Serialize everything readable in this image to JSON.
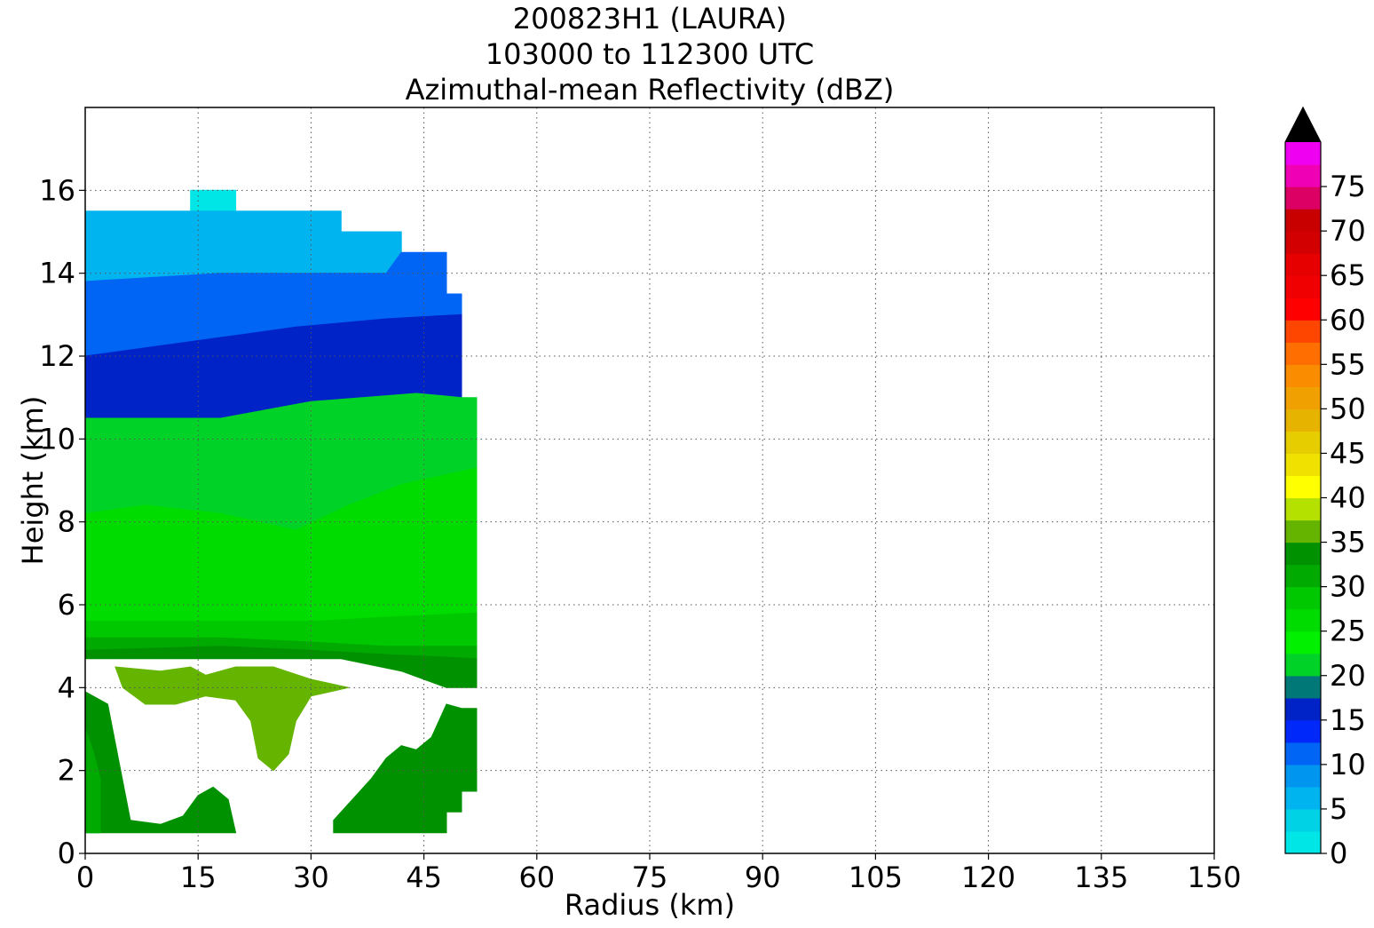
{
  "chart_data": {
    "type": "heatmap",
    "title_lines": [
      "200823H1 (LAURA)",
      "103000 to 112300 UTC",
      "Azimuthal-mean Reflectivity (dBZ)"
    ],
    "xlabel": "Radius (km)",
    "ylabel": "Height (km)",
    "xlim": [
      0,
      150
    ],
    "ylim": [
      0,
      18
    ],
    "x_ticks": [
      0,
      15,
      30,
      45,
      60,
      75,
      90,
      105,
      120,
      135,
      150
    ],
    "y_ticks": [
      0,
      2,
      4,
      6,
      8,
      10,
      12,
      14,
      16
    ],
    "grid": true,
    "colorbar": {
      "levels": [
        0,
        2.5,
        5,
        7.5,
        10,
        12.5,
        15,
        17.5,
        20,
        22.5,
        25,
        27.5,
        30,
        32.5,
        35,
        37.5,
        40,
        42.5,
        45,
        47.5,
        50,
        52.5,
        55,
        57.5,
        60,
        62.5,
        65,
        67.5,
        70,
        72.5,
        75,
        77.5,
        80
      ],
      "tick_labels": [
        "0",
        "5",
        "10",
        "15",
        "20",
        "25",
        "30",
        "35",
        "40",
        "45",
        "50",
        "55",
        "60",
        "65",
        "70",
        "75"
      ],
      "extend": "max",
      "extend_color": "#000000",
      "colors": [
        "#00e6e6",
        "#00d2e6",
        "#00b4ef",
        "#0096f0",
        "#0064f5",
        "#0028fa",
        "#0023c8",
        "#007878",
        "#00d228",
        "#00f000",
        "#00dc00",
        "#00c800",
        "#00aa00",
        "#009100",
        "#64b400",
        "#b4e100",
        "#ffff00",
        "#f0e100",
        "#e6cd00",
        "#e6b400",
        "#f0a000",
        "#fa8c00",
        "#ff6e00",
        "#ff4600",
        "#ff0000",
        "#f00000",
        "#e60000",
        "#d20000",
        "#c80000",
        "#dc0064",
        "#f000b4",
        "#f000f0",
        "#d732e6",
        "#a050d2",
        "#78419b",
        "#46285a",
        "#000000"
      ]
    },
    "fields": [
      {
        "dbz": 2,
        "polygon": [
          [
            14,
            15.5
          ],
          [
            14,
            16
          ],
          [
            20,
            16
          ],
          [
            20,
            15.5
          ]
        ]
      },
      {
        "dbz": 5,
        "polygon": [
          [
            0,
            15.5
          ],
          [
            20,
            15.5
          ],
          [
            20,
            15.5
          ],
          [
            34,
            15.5
          ],
          [
            34,
            15
          ],
          [
            36,
            15
          ],
          [
            36,
            14.5
          ],
          [
            28,
            14.5
          ],
          [
            18,
            14.7
          ],
          [
            10,
            14.6
          ],
          [
            0,
            14.8
          ]
        ]
      },
      {
        "dbz": 7,
        "polygon": [
          [
            0,
            14.8
          ],
          [
            10,
            14.6
          ],
          [
            18,
            14.7
          ],
          [
            28,
            14.5
          ],
          [
            36,
            14.5
          ],
          [
            36,
            15
          ],
          [
            42,
            15
          ],
          [
            42,
            14.5
          ],
          [
            40,
            14.0
          ],
          [
            28,
            14.0
          ],
          [
            18,
            14.0
          ],
          [
            0,
            13.8
          ]
        ]
      },
      {
        "dbz": 10,
        "polygon": [
          [
            0,
            13.8
          ],
          [
            18,
            14.0
          ],
          [
            28,
            14.0
          ],
          [
            40,
            14.0
          ],
          [
            42,
            14.5
          ],
          [
            48,
            14.5
          ],
          [
            48,
            13.9
          ],
          [
            40,
            13.6
          ],
          [
            28,
            13.5
          ],
          [
            18,
            13.4
          ],
          [
            0,
            13.0
          ]
        ]
      },
      {
        "dbz": 12,
        "polygon": [
          [
            0,
            13.0
          ],
          [
            18,
            13.4
          ],
          [
            28,
            13.5
          ],
          [
            40,
            13.6
          ],
          [
            48,
            13.9
          ],
          [
            48,
            13.5
          ],
          [
            50,
            13.5
          ],
          [
            50,
            13.0
          ],
          [
            40,
            12.9
          ],
          [
            28,
            12.7
          ],
          [
            20,
            12.5
          ],
          [
            0,
            12.0
          ]
        ]
      },
      {
        "dbz": 15,
        "polygon": [
          [
            0,
            12.0
          ],
          [
            20,
            12.5
          ],
          [
            28,
            12.7
          ],
          [
            40,
            12.9
          ],
          [
            50,
            13.0
          ],
          [
            50,
            12.4
          ],
          [
            40,
            12.3
          ],
          [
            28,
            12.0
          ],
          [
            18,
            11.4
          ],
          [
            0,
            11.0
          ]
        ]
      },
      {
        "dbz": 17,
        "polygon": [
          [
            0,
            11.0
          ],
          [
            18,
            11.4
          ],
          [
            28,
            12.0
          ],
          [
            40,
            12.3
          ],
          [
            50,
            12.4
          ],
          [
            50,
            11.0
          ],
          [
            44,
            11.1
          ],
          [
            30,
            10.9
          ],
          [
            18,
            10.5
          ],
          [
            0,
            10.5
          ]
        ]
      },
      {
        "dbz": 20,
        "polygon": [
          [
            0,
            10.5
          ],
          [
            18,
            10.5
          ],
          [
            30,
            10.9
          ],
          [
            44,
            11.1
          ],
          [
            50,
            11.0
          ],
          [
            52,
            11.0
          ],
          [
            52,
            10.0
          ],
          [
            42,
            10.0
          ],
          [
            30,
            9.8
          ],
          [
            18,
            9.6
          ],
          [
            0,
            9.6
          ]
        ]
      },
      {
        "dbz": 22,
        "polygon": [
          [
            0,
            9.6
          ],
          [
            18,
            9.6
          ],
          [
            30,
            9.8
          ],
          [
            42,
            10.0
          ],
          [
            52,
            10.0
          ],
          [
            52,
            9.3
          ],
          [
            42,
            8.9
          ],
          [
            35,
            8.4
          ],
          [
            28,
            7.8
          ],
          [
            18,
            8.2
          ],
          [
            8,
            8.4
          ],
          [
            0,
            8.2
          ]
        ]
      },
      {
        "dbz": 25,
        "polygon": [
          [
            0,
            8.2
          ],
          [
            8,
            8.4
          ],
          [
            18,
            8.2
          ],
          [
            28,
            7.8
          ],
          [
            35,
            8.4
          ],
          [
            42,
            8.9
          ],
          [
            52,
            9.3
          ],
          [
            52,
            7.4
          ],
          [
            48,
            6.6
          ],
          [
            42,
            6.6
          ],
          [
            34,
            6.1
          ],
          [
            25,
            6.1
          ],
          [
            18,
            6.8
          ],
          [
            8,
            6.8
          ],
          [
            0,
            6.3
          ]
        ]
      },
      {
        "dbz": 27,
        "polygon": [
          [
            0,
            6.3
          ],
          [
            8,
            6.8
          ],
          [
            18,
            6.8
          ],
          [
            25,
            6.1
          ],
          [
            34,
            6.1
          ],
          [
            42,
            6.6
          ],
          [
            48,
            6.6
          ],
          [
            52,
            7.4
          ],
          [
            52,
            5.8
          ],
          [
            40,
            5.7
          ],
          [
            30,
            5.6
          ],
          [
            18,
            5.6
          ],
          [
            0,
            5.6
          ]
        ]
      },
      {
        "dbz": 29,
        "polygon": [
          [
            0,
            5.6
          ],
          [
            18,
            5.6
          ],
          [
            30,
            5.6
          ],
          [
            40,
            5.7
          ],
          [
            52,
            5.8
          ],
          [
            52,
            5.0
          ],
          [
            40,
            5.0
          ],
          [
            30,
            5.1
          ],
          [
            18,
            5.2
          ],
          [
            0,
            5.2
          ]
        ]
      },
      {
        "dbz": 31,
        "polygon": [
          [
            0,
            5.2
          ],
          [
            18,
            5.2
          ],
          [
            30,
            5.1
          ],
          [
            40,
            5.0
          ],
          [
            52,
            5.0
          ],
          [
            52,
            4.7
          ],
          [
            40,
            4.8
          ],
          [
            30,
            4.9
          ],
          [
            18,
            5.0
          ],
          [
            0,
            4.9
          ]
        ]
      },
      {
        "dbz": 33,
        "polygon": [
          [
            0,
            4.9
          ],
          [
            18,
            5.0
          ],
          [
            30,
            4.9
          ],
          [
            40,
            4.8
          ],
          [
            52,
            4.7
          ],
          [
            52,
            4.0
          ],
          [
            48,
            4.0
          ],
          [
            42,
            4.4
          ],
          [
            34,
            4.7
          ],
          [
            22,
            4.7
          ],
          [
            14,
            4.7
          ],
          [
            0,
            4.7
          ]
        ]
      },
      {
        "dbz": 33,
        "polygon": [
          [
            0,
            3.9
          ],
          [
            3,
            3.6
          ],
          [
            6,
            0.8
          ],
          [
            10,
            0.7
          ],
          [
            13,
            0.9
          ],
          [
            15,
            1.4
          ],
          [
            17,
            1.6
          ],
          [
            19,
            1.3
          ],
          [
            20,
            0.5
          ],
          [
            0,
            0.5
          ]
        ]
      },
      {
        "dbz": 33,
        "polygon": [
          [
            33,
            0.5
          ],
          [
            48,
            0.5
          ],
          [
            48,
            1.0
          ],
          [
            50,
            1.0
          ],
          [
            50,
            1.5
          ],
          [
            52,
            1.5
          ],
          [
            52,
            3.5
          ],
          [
            50,
            3.5
          ],
          [
            48,
            3.6
          ],
          [
            46,
            2.8
          ],
          [
            44,
            2.5
          ],
          [
            42,
            2.6
          ],
          [
            40,
            2.3
          ],
          [
            38,
            1.8
          ],
          [
            35,
            1.2
          ],
          [
            33,
            0.8
          ]
        ]
      },
      {
        "dbz": 31,
        "polygon": [
          [
            0,
            0.5
          ],
          [
            2,
            0.5
          ],
          [
            2,
            1.8
          ],
          [
            1,
            2.5
          ],
          [
            0,
            3.0
          ]
        ]
      },
      {
        "dbz": 36,
        "polygon": [
          [
            4,
            4.5
          ],
          [
            10,
            4.4
          ],
          [
            14,
            4.5
          ],
          [
            16,
            4.3
          ],
          [
            20,
            4.5
          ],
          [
            25,
            4.5
          ],
          [
            30,
            4.2
          ],
          [
            35,
            4.0
          ],
          [
            30,
            3.8
          ],
          [
            28,
            3.2
          ],
          [
            27,
            2.4
          ],
          [
            25,
            2.0
          ],
          [
            23,
            2.3
          ],
          [
            22,
            3.2
          ],
          [
            20,
            3.7
          ],
          [
            16,
            3.8
          ],
          [
            12,
            3.6
          ],
          [
            8,
            3.6
          ],
          [
            5,
            4.0
          ]
        ]
      }
    ]
  }
}
